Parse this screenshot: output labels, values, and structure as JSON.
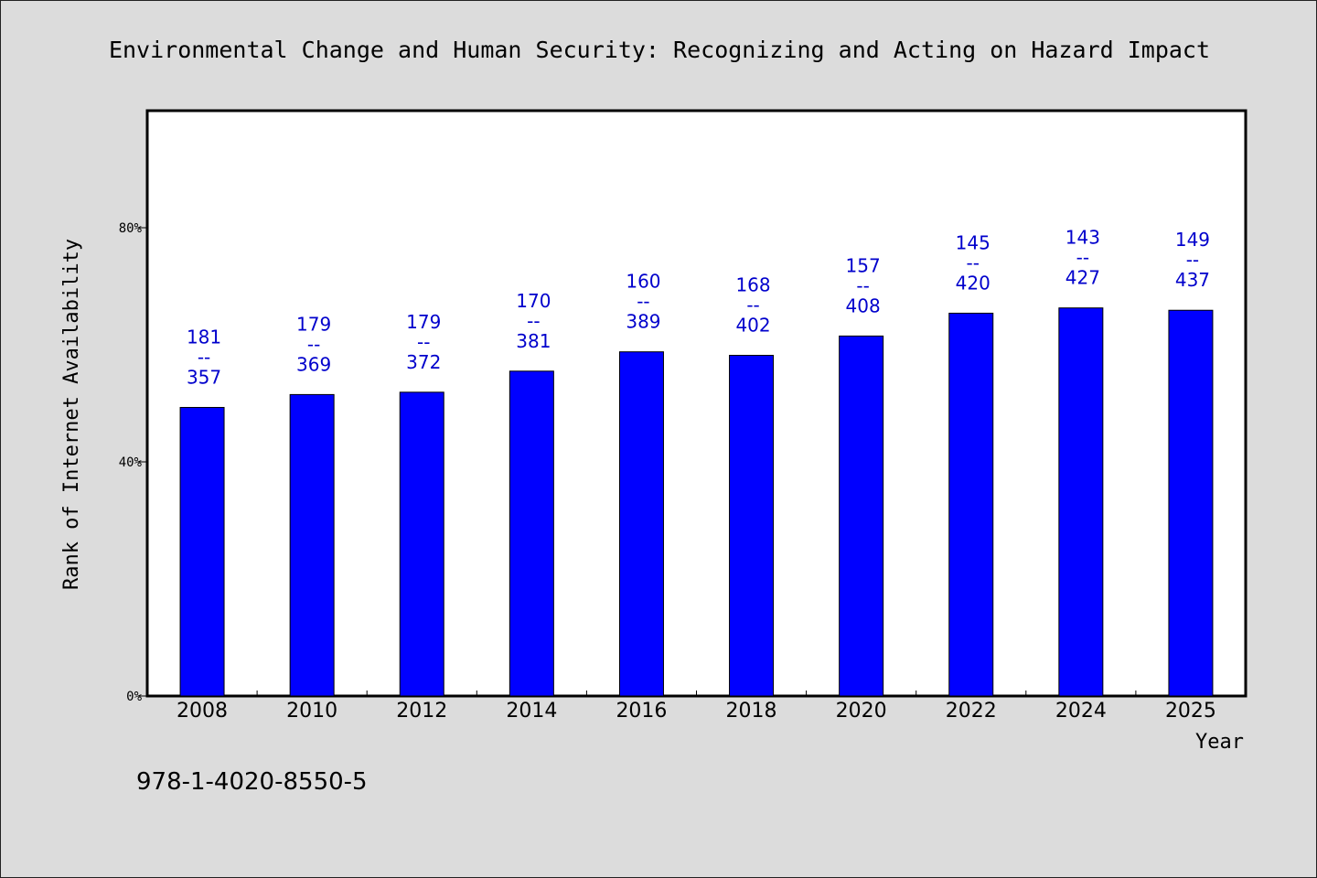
{
  "chart_data": {
    "type": "bar",
    "title": "Environmental Change and Human Security: Recognizing and Acting on Hazard Impact",
    "xlabel": "Year",
    "ylabel": "Rank of Internet Availability",
    "footer": "978-1-4020-8550-5",
    "categories": [
      "2008",
      "2010",
      "2012",
      "2014",
      "2016",
      "2018",
      "2020",
      "2022",
      "2024",
      "2025"
    ],
    "values": [
      49.3,
      51.5,
      51.9,
      55.5,
      58.8,
      58.2,
      61.5,
      65.4,
      66.3,
      65.9
    ],
    "rank": [
      181,
      179,
      179,
      170,
      160,
      168,
      157,
      145,
      143,
      149
    ],
    "total": [
      357,
      369,
      372,
      381,
      389,
      402,
      408,
      420,
      427,
      437
    ],
    "label_separator": "--",
    "ylim": [
      0,
      100
    ],
    "yticks": [
      0,
      40,
      80
    ],
    "ytick_labels": [
      "0%",
      "40%",
      "80%"
    ],
    "grid": false,
    "legend": "none",
    "colors": {
      "bar": "#0000ff",
      "label": "#0000cc",
      "background": "#dcdcdc",
      "plot_area": "#ffffff",
      "axis": "#000000"
    }
  }
}
